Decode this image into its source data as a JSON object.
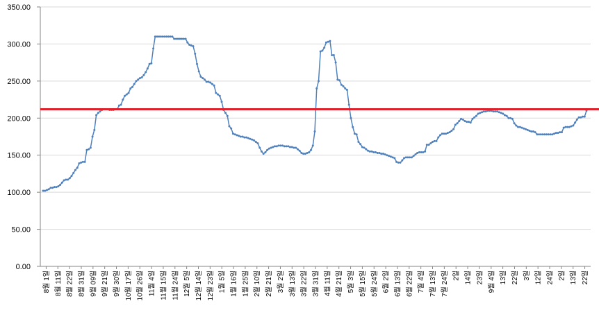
{
  "chart_data": {
    "type": "line",
    "title": "",
    "xlabel": "",
    "ylabel": "",
    "ylim": [
      0,
      350
    ],
    "y_ticks": [
      "0.00",
      "50.00",
      "100.00",
      "150.00",
      "200.00",
      "250.00",
      "300.00",
      "350.00"
    ],
    "grid": "horizontal",
    "legend": "none",
    "x_tick_labels": [
      "8월 1일",
      "8월 11일",
      "8월 22일",
      "8월 31일",
      "9월 09일",
      "9월 21일",
      "9월 30일",
      "10월 17일",
      "10월 26일",
      "11월 4일",
      "11월 15일",
      "11월 24일",
      "12월 5일",
      "12월 14일",
      "12월 23일",
      "1월 5일",
      "1월 16일",
      "1월 25일",
      "2월 10일",
      "2월 21일",
      "3월 2일",
      "3월 13일",
      "3월 22일",
      "3월 31일",
      "4월 11일",
      "4월 21일",
      "5월 3일",
      "5월 15일",
      "5월 24일",
      "6월 2일",
      "6월 13일",
      "6월 22일",
      "7월 4일",
      "7월 13일",
      "7월 24일",
      "2일",
      "14일",
      "23일",
      "9월 4일",
      "13일",
      "22일",
      "3일",
      "12일",
      "24일",
      "2일",
      "13일",
      "22일"
    ],
    "reference_line": {
      "value": 212,
      "color": "#e0202a"
    },
    "series": [
      {
        "color": "#4f81bd",
        "values": [
          102,
          102,
          103,
          104,
          106,
          106,
          107,
          107,
          108,
          110,
          113,
          116,
          117,
          117,
          119,
          122,
          126,
          130,
          133,
          139,
          140,
          141,
          141,
          157,
          158,
          160,
          175,
          184,
          204,
          207,
          209,
          211,
          212,
          212,
          212,
          211,
          211,
          211,
          212,
          212,
          217,
          218,
          225,
          230,
          232,
          234,
          240,
          242,
          246,
          250,
          252,
          254,
          255,
          258,
          262,
          267,
          273,
          274,
          294,
          310,
          310,
          310,
          310,
          310,
          310,
          310,
          310,
          310,
          310,
          307,
          307,
          307,
          307,
          307,
          307,
          307,
          302,
          299,
          298,
          297,
          287,
          273,
          263,
          256,
          254,
          252,
          249,
          249,
          248,
          246,
          244,
          234,
          232,
          230,
          222,
          211,
          207,
          203,
          189,
          186,
          179,
          178,
          177,
          176,
          175,
          175,
          174,
          174,
          173,
          172,
          171,
          170,
          168,
          166,
          160,
          155,
          152,
          154,
          157,
          159,
          160,
          161,
          162,
          162,
          163,
          163,
          163,
          162,
          162,
          162,
          161,
          161,
          160,
          160,
          158,
          156,
          153,
          152,
          152,
          153,
          154,
          157,
          163,
          182,
          240,
          250,
          290,
          291,
          295,
          302,
          303,
          304,
          285,
          285,
          275,
          252,
          251,
          245,
          243,
          240,
          238,
          218,
          200,
          188,
          179,
          178,
          168,
          165,
          161,
          160,
          158,
          156,
          155,
          155,
          154,
          154,
          153,
          153,
          152,
          152,
          151,
          150,
          149,
          148,
          147,
          146,
          141,
          140,
          140,
          143,
          146,
          147,
          147,
          147,
          147,
          149,
          151,
          153,
          154,
          154,
          154,
          155,
          164,
          164,
          166,
          168,
          169,
          169,
          174,
          177,
          179,
          179,
          179,
          180,
          181,
          183,
          185,
          191,
          193,
          196,
          199,
          198,
          196,
          195,
          195,
          194,
          199,
          201,
          203,
          206,
          207,
          208,
          209,
          209,
          210,
          210,
          210,
          209,
          209,
          209,
          208,
          207,
          206,
          204,
          203,
          200,
          200,
          199,
          193,
          190,
          188,
          188,
          187,
          186,
          185,
          184,
          183,
          182,
          182,
          181,
          178,
          178,
          178,
          178,
          178,
          178,
          178,
          178,
          178,
          179,
          180,
          180,
          181,
          181,
          187,
          188,
          188,
          188,
          189,
          190,
          194,
          198,
          201,
          201,
          202,
          202,
          210
        ]
      }
    ]
  }
}
